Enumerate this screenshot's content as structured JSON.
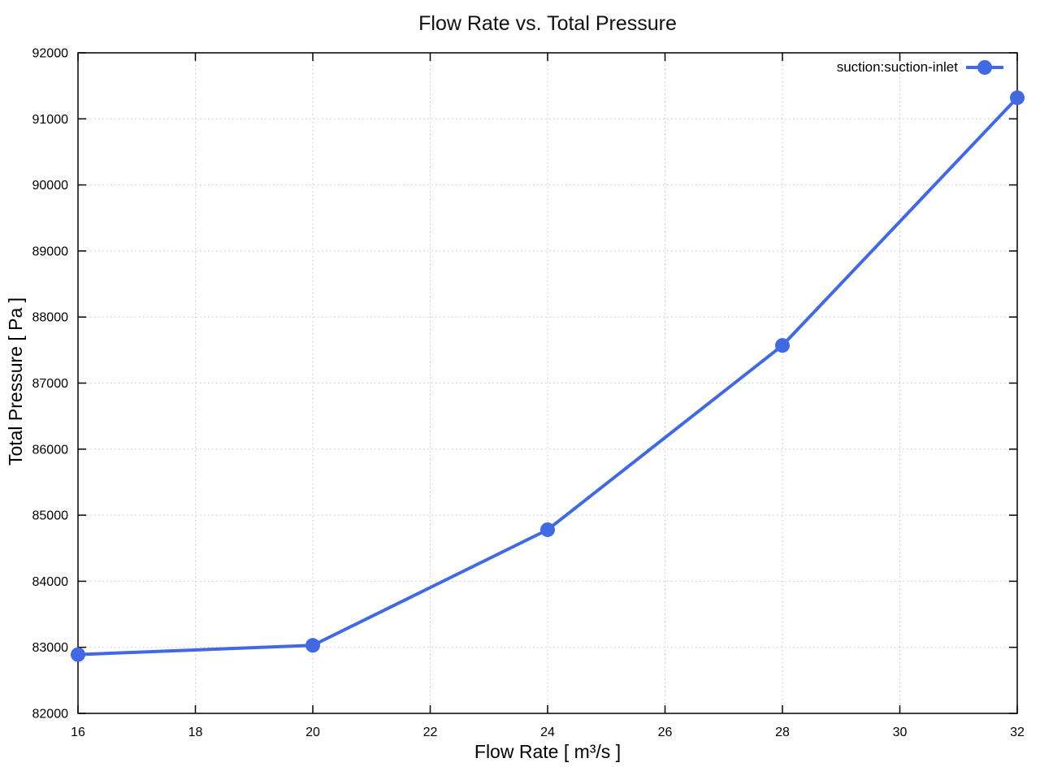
{
  "window": {
    "background": "#ffffff"
  },
  "chart_data": {
    "type": "line",
    "title": "Flow Rate vs. Total Pressure",
    "xlabel": "Flow Rate [ m³/s ]",
    "ylabel": "Total Pressure [ Pa ]",
    "xlim": [
      16,
      32
    ],
    "ylim": [
      82000,
      92000
    ],
    "xticks": [
      16,
      18,
      20,
      22,
      24,
      26,
      28,
      30,
      32
    ],
    "yticks": [
      82000,
      83000,
      84000,
      85000,
      86000,
      87000,
      88000,
      89000,
      90000,
      91000,
      92000
    ],
    "grid": true,
    "grid_style": "dotted",
    "legend": {
      "position": "top-right-inside",
      "entries": [
        "suction:suction-inlet"
      ]
    },
    "series": [
      {
        "name": "suction:suction-inlet",
        "color": "#4169e1",
        "marker": "circle",
        "marker_radius": 9,
        "line_width": 4,
        "x": [
          16,
          20,
          24,
          28,
          32
        ],
        "y": [
          82890,
          83030,
          84780,
          87570,
          91320
        ]
      }
    ],
    "axis_color": "#000000",
    "grid_color": "#c4c4c4",
    "text_color": "#000000"
  }
}
